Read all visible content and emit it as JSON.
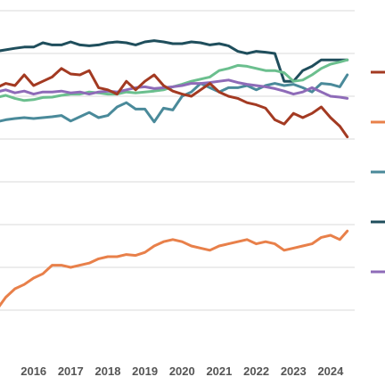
{
  "chart_data": {
    "type": "line",
    "title": "",
    "xlabel": "",
    "ylabel": "",
    "grid": "horizontal",
    "legend_placement": "right",
    "x_tick_labels": [
      "2016",
      "2017",
      "2018",
      "2019",
      "2020",
      "2021",
      "2022",
      "2023",
      "2024"
    ],
    "xlim": [
      2015.0,
      2024.65
    ],
    "ylim": [
      0,
      8
    ],
    "y_gridlines": [
      1,
      2,
      3,
      4,
      5,
      6,
      7,
      8
    ],
    "series": [
      {
        "color": "#1f4e5c",
        "x": [
          2015.0,
          2015.5,
          2015.75,
          2016.0,
          2016.25,
          2016.5,
          2016.75,
          2017.0,
          2017.25,
          2017.5,
          2017.75,
          2018.0,
          2018.25,
          2018.5,
          2018.75,
          2019.0,
          2019.25,
          2019.5,
          2019.75,
          2020.0,
          2020.25,
          2020.5,
          2020.75,
          2021.0,
          2021.25,
          2021.5,
          2021.75,
          2022.0,
          2022.25,
          2022.5,
          2022.75,
          2023.0,
          2023.25,
          2023.5,
          2023.75,
          2024.0,
          2024.25,
          2024.45
        ],
        "y": [
          7.05,
          7.12,
          7.15,
          7.15,
          7.25,
          7.2,
          7.2,
          7.27,
          7.2,
          7.18,
          7.2,
          7.25,
          7.27,
          7.25,
          7.2,
          7.27,
          7.3,
          7.27,
          7.23,
          7.23,
          7.27,
          7.25,
          7.2,
          7.23,
          7.18,
          7.05,
          7.0,
          7.05,
          7.03,
          7.0,
          6.35,
          6.35,
          6.6,
          6.7,
          6.85,
          6.85,
          6.85,
          6.85
        ]
      },
      {
        "color": "#6bbf8e",
        "x": [
          2015.0,
          2015.25,
          2015.5,
          2015.75,
          2016.0,
          2016.25,
          2016.5,
          2016.75,
          2017.0,
          2017.25,
          2017.5,
          2017.75,
          2018.0,
          2018.25,
          2018.5,
          2018.75,
          2019.0,
          2019.25,
          2019.5,
          2019.75,
          2020.0,
          2020.25,
          2020.5,
          2020.75,
          2021.0,
          2021.25,
          2021.5,
          2021.75,
          2022.0,
          2022.25,
          2022.5,
          2022.75,
          2023.0,
          2023.25,
          2023.5,
          2023.75,
          2024.0,
          2024.25,
          2024.45
        ],
        "y": [
          5.97,
          6.02,
          5.95,
          5.9,
          5.92,
          5.97,
          5.98,
          6.02,
          6.05,
          6.05,
          6.1,
          6.08,
          6.05,
          6.05,
          6.1,
          6.08,
          6.1,
          6.12,
          6.15,
          6.22,
          6.28,
          6.35,
          6.4,
          6.45,
          6.6,
          6.65,
          6.72,
          6.7,
          6.65,
          6.6,
          6.6,
          6.55,
          6.35,
          6.38,
          6.5,
          6.65,
          6.75,
          6.8,
          6.85
        ]
      },
      {
        "color": "#4a8a9a",
        "x": [
          2015.0,
          2015.25,
          2015.5,
          2015.75,
          2016.0,
          2016.25,
          2016.5,
          2016.75,
          2017.0,
          2017.25,
          2017.5,
          2017.75,
          2018.0,
          2018.25,
          2018.5,
          2018.75,
          2019.0,
          2019.25,
          2019.5,
          2019.75,
          2020.0,
          2020.25,
          2020.5,
          2020.75,
          2021.0,
          2021.25,
          2021.5,
          2021.75,
          2022.0,
          2022.25,
          2022.5,
          2022.75,
          2023.0,
          2023.25,
          2023.5,
          2023.75,
          2024.0,
          2024.25,
          2024.45
        ],
        "y": [
          5.4,
          5.45,
          5.48,
          5.5,
          5.48,
          5.5,
          5.52,
          5.55,
          5.42,
          5.52,
          5.62,
          5.5,
          5.55,
          5.75,
          5.85,
          5.7,
          5.7,
          5.4,
          5.72,
          5.68,
          6.0,
          6.1,
          6.3,
          6.2,
          6.1,
          6.2,
          6.2,
          6.25,
          6.15,
          6.25,
          6.3,
          6.25,
          6.28,
          6.2,
          6.1,
          6.3,
          6.28,
          6.22,
          6.5
        ]
      },
      {
        "color": "#8e6bb8",
        "x": [
          2015.0,
          2015.25,
          2015.5,
          2015.75,
          2016.0,
          2016.25,
          2016.5,
          2016.75,
          2017.0,
          2017.25,
          2017.5,
          2017.75,
          2018.0,
          2018.25,
          2018.5,
          2018.75,
          2019.0,
          2019.25,
          2019.5,
          2019.75,
          2020.0,
          2020.25,
          2020.5,
          2020.75,
          2021.0,
          2021.25,
          2021.5,
          2021.75,
          2022.0,
          2022.25,
          2022.5,
          2022.75,
          2023.0,
          2023.25,
          2023.5,
          2023.75,
          2024.0,
          2024.25,
          2024.45
        ],
        "y": [
          6.1,
          6.15,
          6.08,
          6.12,
          6.05,
          6.1,
          6.1,
          6.12,
          6.08,
          6.1,
          6.05,
          6.1,
          6.12,
          6.1,
          6.15,
          6.2,
          6.22,
          6.18,
          6.2,
          6.22,
          6.25,
          6.3,
          6.3,
          6.32,
          6.35,
          6.38,
          6.32,
          6.28,
          6.25,
          6.22,
          6.18,
          6.12,
          6.05,
          6.1,
          6.2,
          6.1,
          6.0,
          5.98,
          5.95
        ]
      },
      {
        "color": "#a33a22",
        "x": [
          2015.0,
          2015.25,
          2015.5,
          2015.75,
          2016.0,
          2016.25,
          2016.5,
          2016.75,
          2017.0,
          2017.25,
          2017.5,
          2017.75,
          2018.0,
          2018.25,
          2018.5,
          2018.75,
          2019.0,
          2019.25,
          2019.5,
          2019.75,
          2020.0,
          2020.25,
          2020.5,
          2020.75,
          2021.0,
          2021.25,
          2021.5,
          2021.75,
          2022.0,
          2022.25,
          2022.5,
          2022.75,
          2023.0,
          2023.25,
          2023.5,
          2023.75,
          2024.0,
          2024.25,
          2024.45
        ],
        "y": [
          6.2,
          6.3,
          6.25,
          6.5,
          6.25,
          6.35,
          6.45,
          6.65,
          6.52,
          6.5,
          6.6,
          6.2,
          6.15,
          6.05,
          6.35,
          6.15,
          6.35,
          6.5,
          6.25,
          6.12,
          6.05,
          6.0,
          6.15,
          6.3,
          6.1,
          6.0,
          5.95,
          5.85,
          5.8,
          5.72,
          5.45,
          5.35,
          5.6,
          5.5,
          5.6,
          5.75,
          5.5,
          5.3,
          5.05
        ]
      },
      {
        "color": "#e8804a",
        "x": [
          2015.0,
          2015.25,
          2015.5,
          2015.75,
          2016.0,
          2016.25,
          2016.5,
          2016.75,
          2017.0,
          2017.25,
          2017.5,
          2017.75,
          2018.0,
          2018.25,
          2018.5,
          2018.75,
          2019.0,
          2019.25,
          2019.5,
          2019.75,
          2020.0,
          2020.25,
          2020.5,
          2020.75,
          2021.0,
          2021.25,
          2021.5,
          2021.75,
          2022.0,
          2022.25,
          2022.5,
          2022.75,
          2023.0,
          2023.25,
          2023.5,
          2023.75,
          2024.0,
          2024.25,
          2024.45
        ],
        "y": [
          1.0,
          1.3,
          1.5,
          1.6,
          1.75,
          1.85,
          2.05,
          2.05,
          2.0,
          2.05,
          2.1,
          2.2,
          2.25,
          2.25,
          2.3,
          2.28,
          2.35,
          2.5,
          2.6,
          2.65,
          2.6,
          2.5,
          2.45,
          2.4,
          2.5,
          2.55,
          2.6,
          2.65,
          2.55,
          2.6,
          2.55,
          2.4,
          2.45,
          2.5,
          2.55,
          2.7,
          2.75,
          2.65,
          2.85
        ]
      }
    ]
  }
}
